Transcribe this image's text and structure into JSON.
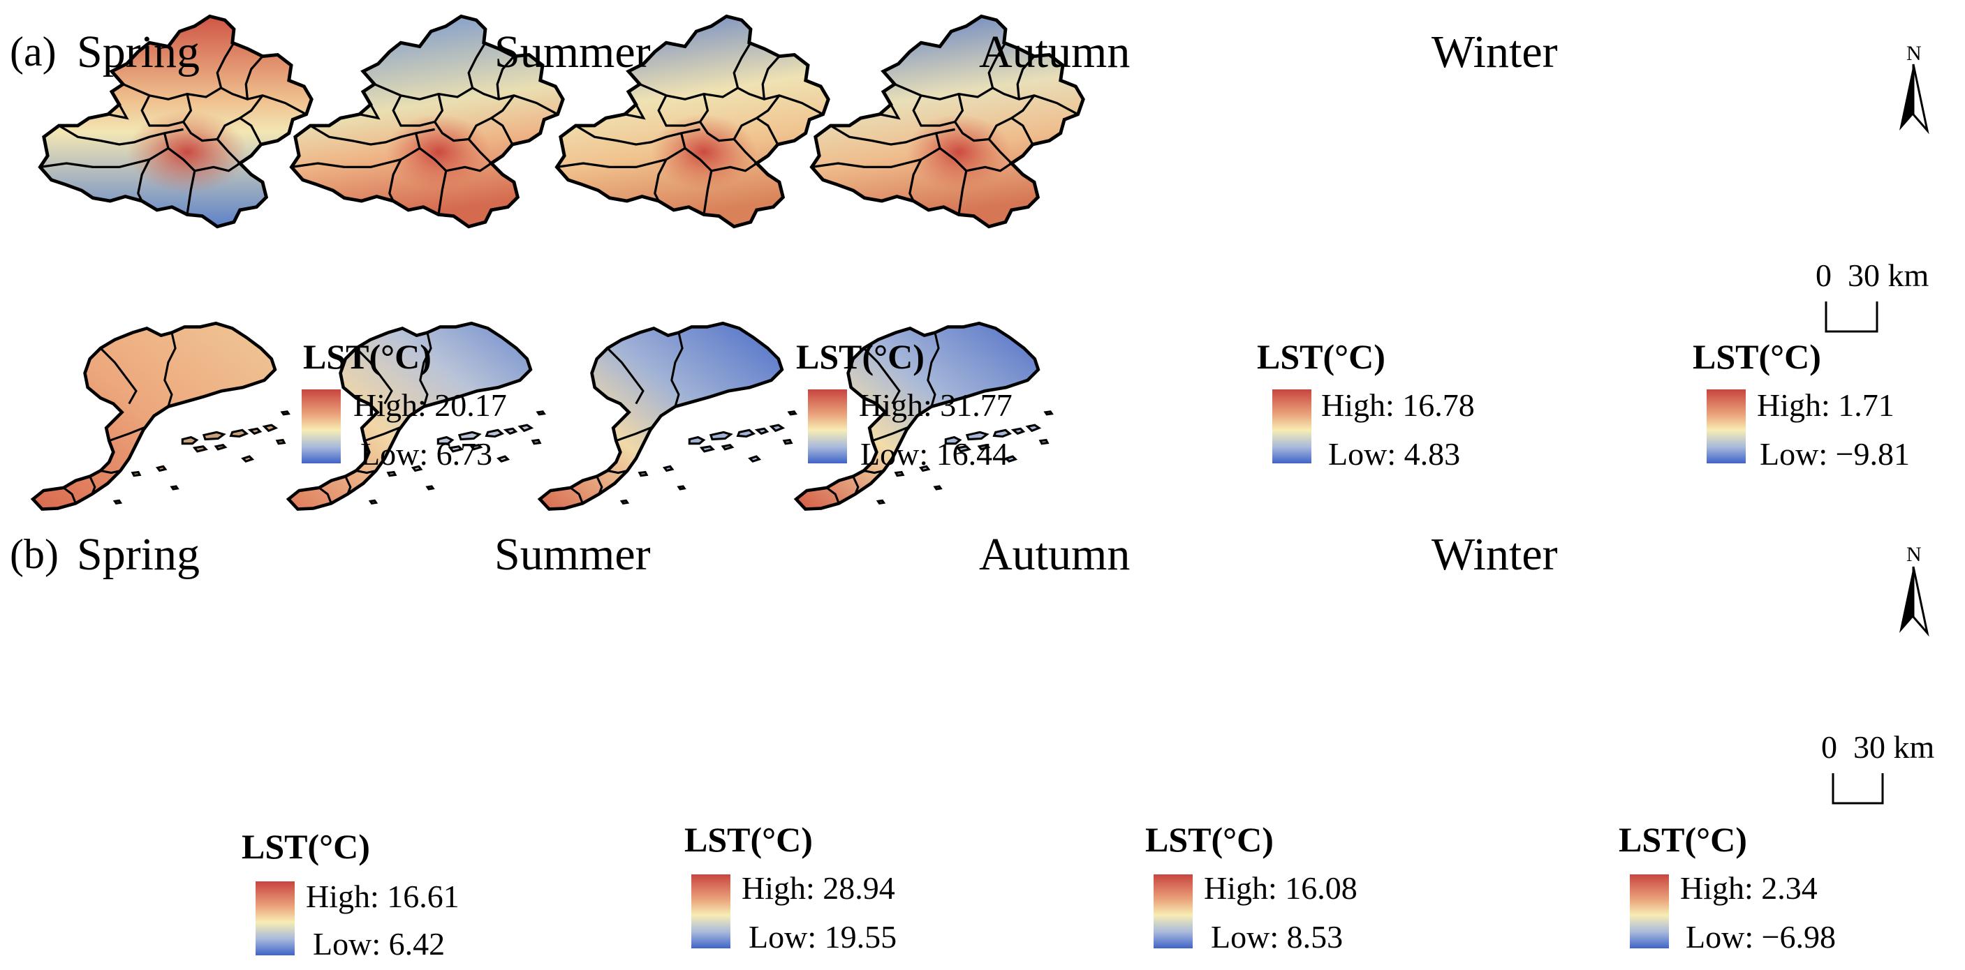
{
  "figure": {
    "row_a": {
      "panel_label": "(a)",
      "maps": [
        {
          "season": "Spring",
          "legend_title": "LST(°C)",
          "high": "High: 20.17",
          "low": "Low: 6.73"
        },
        {
          "season": "Summer",
          "legend_title": "LST(°C)",
          "high": "High: 31.77",
          "low": "Low: 16.44"
        },
        {
          "season": "Autumn",
          "legend_title": "LST(°C)",
          "high": "High: 16.78",
          "low": "Low: 4.83"
        },
        {
          "season": "Winter",
          "legend_title": "LST(°C)",
          "high": "High: 1.71",
          "low": "Low: −9.81"
        }
      ],
      "north_label": "N",
      "scale_label": "0  30 km"
    },
    "row_b": {
      "panel_label": "(b)",
      "maps": [
        {
          "season": "Spring",
          "legend_title": "LST(°C)",
          "high": "High: 16.61",
          "low": "Low: 6.42"
        },
        {
          "season": "Summer",
          "legend_title": "LST(°C)",
          "high": "High: 28.94",
          "low": "Low: 19.55"
        },
        {
          "season": "Autumn",
          "legend_title": "LST(°C)",
          "high": "High: 16.08",
          "low": "Low: 8.53"
        },
        {
          "season": "Winter",
          "legend_title": "LST(°C)",
          "high": "High: 2.34",
          "low": "Low: −6.98"
        }
      ],
      "north_label": "N",
      "scale_label": "0  30 km"
    }
  },
  "colors": {
    "high": "#c8443f",
    "mid": "#f7edb4",
    "low": "#3f63c8",
    "boundary": "#000000"
  }
}
